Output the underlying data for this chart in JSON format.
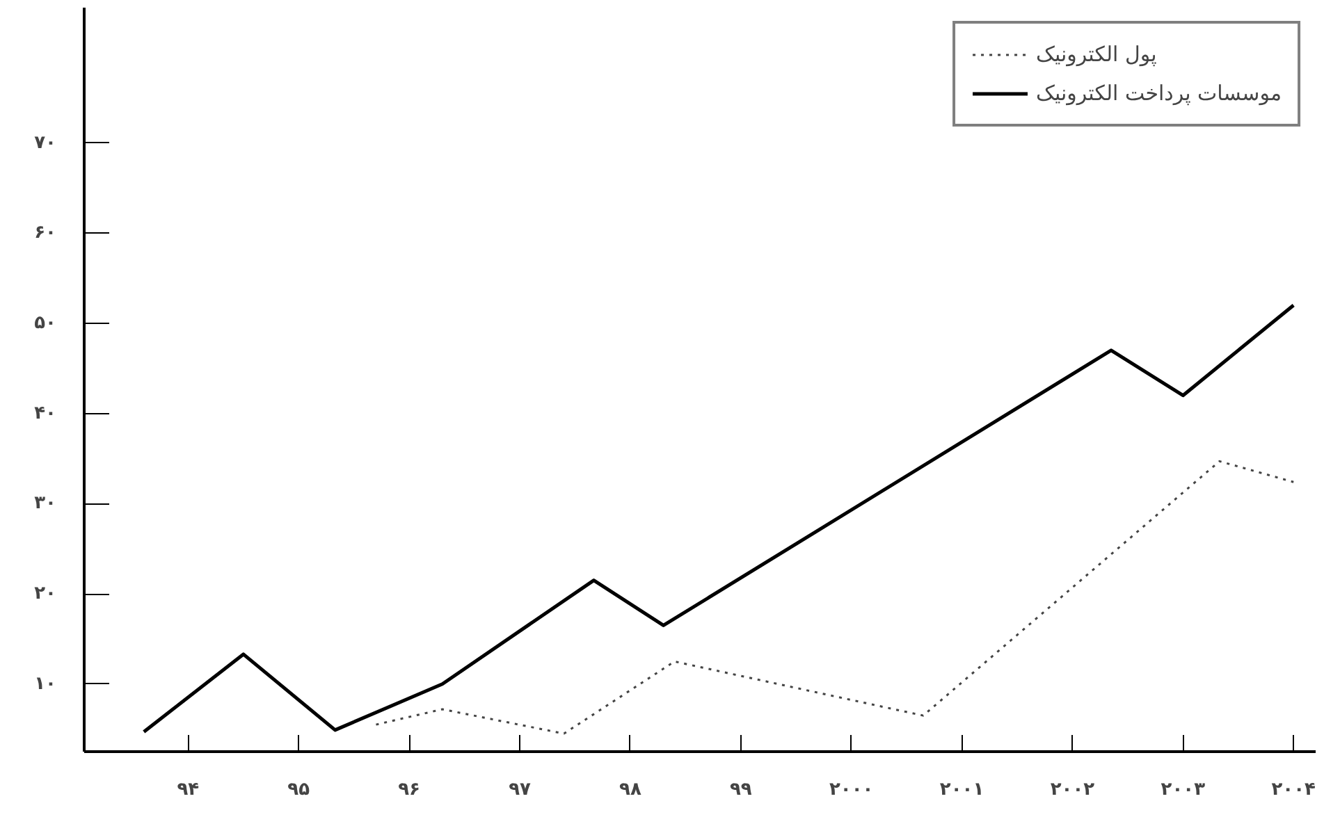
{
  "chart_data": {
    "type": "line",
    "series": [
      {
        "name": "پول الکترونیک",
        "color": "#444444",
        "line_style": "dotted",
        "x": [
          1995.7,
          1996.3,
          1997.4,
          1998.4,
          2000.65,
          2003.33,
          2004.0
        ],
        "values": [
          5.5,
          7.2,
          4.5,
          12.5,
          6.5,
          34.7,
          32.4
        ]
      },
      {
        "name": "موسسات پرداخت الکترونیک",
        "color": "#000000",
        "line_style": "solid",
        "x": [
          1993.6,
          1994.5,
          1995.33,
          1996.3,
          1997.67,
          1998.3,
          2002.35,
          2003.0,
          2004.0
        ],
        "values": [
          4.7,
          13.3,
          4.9,
          10,
          21.5,
          16.5,
          47,
          42,
          52
        ]
      }
    ],
    "xlim": [
      1993.06,
      2004.2
    ],
    "ylim": [
      2.5,
      85
    ],
    "xticks": [
      {
        "value": 1994,
        "label": "۹۴"
      },
      {
        "value": 1995,
        "label": "۹۵"
      },
      {
        "value": 1996,
        "label": "۹۶"
      },
      {
        "value": 1997,
        "label": "۹۷"
      },
      {
        "value": 1998,
        "label": "۹۸"
      },
      {
        "value": 1999,
        "label": "۹۹"
      },
      {
        "value": 2000,
        "label": "۲۰۰۰"
      },
      {
        "value": 2001,
        "label": "۲۰۰۱"
      },
      {
        "value": 2002,
        "label": "۲۰۰۲"
      },
      {
        "value": 2003,
        "label": "۲۰۰۳"
      },
      {
        "value": 2004,
        "label": "۲۰۰۴"
      }
    ],
    "yticks": [
      {
        "value": 10,
        "label": "۱۰"
      },
      {
        "value": 20,
        "label": "۲۰"
      },
      {
        "value": 30,
        "label": "۳۰"
      },
      {
        "value": 40,
        "label": "۴۰"
      },
      {
        "value": 50,
        "label": "۵۰"
      },
      {
        "value": 60,
        "label": "۶۰"
      },
      {
        "value": 70,
        "label": "۷۰"
      }
    ],
    "grid": false,
    "legend": "top right",
    "marker": "none"
  }
}
